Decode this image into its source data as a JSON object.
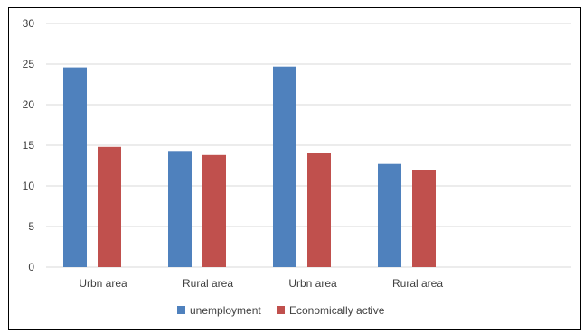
{
  "chart_data": {
    "type": "bar",
    "categories": [
      "Urbn area",
      "Rural area",
      "Urbn area",
      "Rural area"
    ],
    "series": [
      {
        "name": "unemployment",
        "values": [
          24.6,
          14.3,
          24.7,
          12.7
        ],
        "color": "#4f81bd"
      },
      {
        "name": "Economically active",
        "values": [
          14.8,
          13.8,
          14.0,
          12.0
        ],
        "color": "#c0504d"
      }
    ],
    "ylim": [
      0,
      30
    ],
    "yticks": [
      0,
      5,
      10,
      15,
      20,
      25,
      30
    ],
    "grid": true,
    "legend_position": "bottom",
    "title": "",
    "xlabel": "",
    "ylabel": ""
  }
}
